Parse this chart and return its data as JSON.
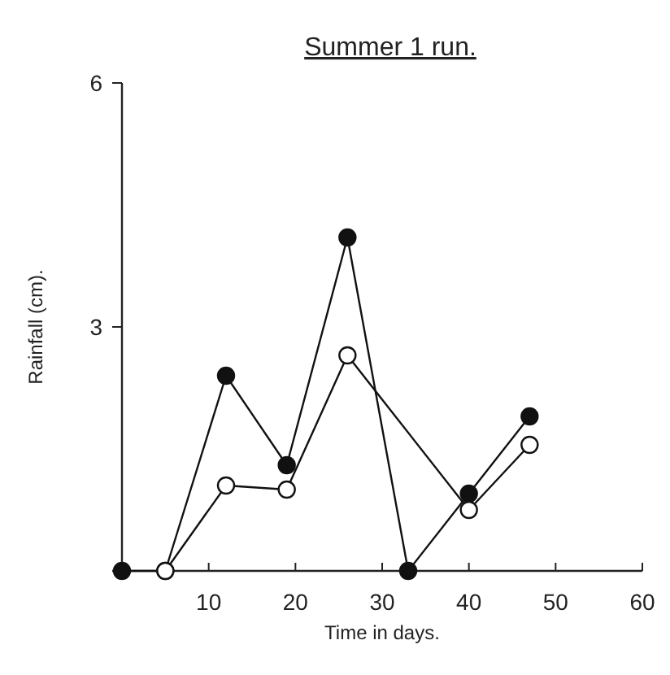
{
  "chart_data": {
    "type": "line",
    "title": "Summer 1 run.",
    "xlabel": "Time in days.",
    "ylabel": "Rainfall (cm).",
    "xlim": [
      0,
      60
    ],
    "ylim": [
      0,
      6
    ],
    "xticks": [
      10,
      20,
      30,
      40,
      50,
      60
    ],
    "yticks": [
      {
        "value": 0,
        "label": null
      },
      3,
      6
    ],
    "marker": "circle",
    "grid": false,
    "line_style": "solid",
    "series": [
      {
        "color": "#111111",
        "x": [
          0,
          5,
          12,
          19,
          26,
          33,
          40,
          47
        ],
        "values": [
          0,
          0,
          2.4,
          1.3,
          4.1,
          0,
          0.95,
          1.9
        ]
      },
      {
        "color": "#111111",
        "x": [
          5,
          12,
          19,
          26,
          40,
          47
        ],
        "values": [
          0,
          1.05,
          1.0,
          2.65,
          0.75,
          1.55
        ]
      }
    ]
  }
}
